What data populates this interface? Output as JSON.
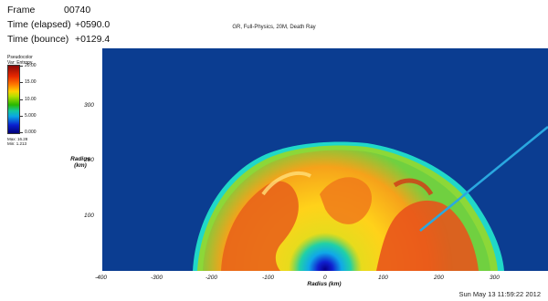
{
  "header": {
    "frame_label": "Frame",
    "frame_value": "00740",
    "elapsed_label": "Time (elapsed)",
    "elapsed_value": "+0590.0",
    "bounce_label": "Time (bounce)",
    "bounce_value": "+0129.4"
  },
  "subtitle": "GR, Full-Physics, 20M, Death Ray",
  "legend": {
    "title_line1": "Pseudocolor",
    "title_line2": "Var: Entropy",
    "labels": [
      "20.00",
      "15.00",
      "10.00",
      "5.000",
      "0.000"
    ],
    "max": "Max: 16.28",
    "min": "Min: 1.213"
  },
  "timestamp": "Sun May 13 11:59:22 2012",
  "chart_data": {
    "type": "heatmap",
    "title": "",
    "variable": "Entropy",
    "xlabel": "Radius (km)",
    "ylabel": "Radius (km)",
    "xlim": [
      -420,
      450
    ],
    "ylim": [
      0,
      440
    ],
    "x_ticks": [
      -400,
      -300,
      -200,
      -100,
      0,
      100,
      200,
      300
    ],
    "y_ticks": [
      100,
      200,
      300
    ],
    "colorbar": {
      "range": [
        0,
        20
      ],
      "ticks": [
        20.0,
        15.0,
        10.0,
        5.0,
        0.0
      ]
    },
    "data_max": 16.28,
    "data_min": 1.213,
    "shock_radius_km": 315,
    "colors": {
      "background": "#0b3d91",
      "low": "#00007a",
      "mid": "#28b800",
      "high": "#8a0808"
    }
  }
}
